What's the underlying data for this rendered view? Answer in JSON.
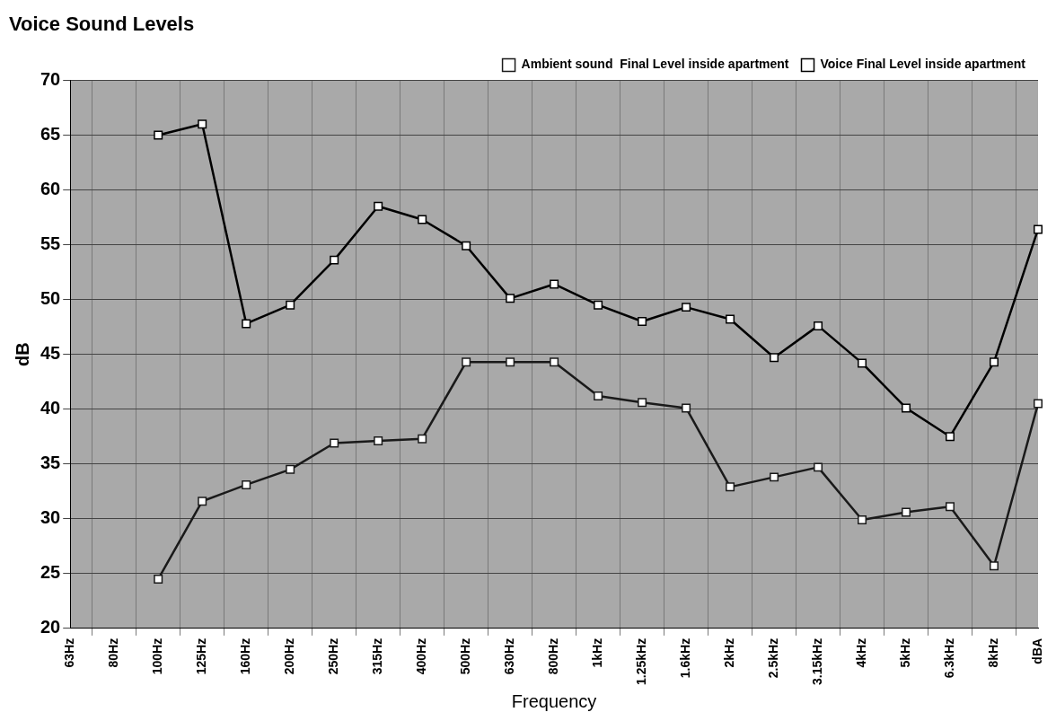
{
  "chart_data": {
    "type": "line",
    "title": "Voice Sound Levels",
    "xlabel": "Frequency",
    "ylabel": "dB",
    "categories": [
      "63Hz",
      "80Hz",
      "100Hz",
      "125Hz",
      "160Hz",
      "200Hz",
      "250Hz",
      "315Hz",
      "400Hz",
      "500Hz",
      "630Hz",
      "800Hz",
      "1kHz",
      "1.25kHz",
      "1.6kHz",
      "2kHz",
      "2.5kHz",
      "3.15kHz",
      "4kHz",
      "5kHz",
      "6.3kHz",
      "8kHz",
      "dBA"
    ],
    "series": [
      {
        "name": "Ambient sound  Final Level inside apartment",
        "color": "#1a1a1a",
        "values": [
          null,
          null,
          24.5,
          31.6,
          33.1,
          34.5,
          36.9,
          37.1,
          37.3,
          44.3,
          44.3,
          44.3,
          41.2,
          40.6,
          40.1,
          32.9,
          33.8,
          34.7,
          29.9,
          30.6,
          31.1,
          25.7,
          40.5
        ]
      },
      {
        "name": "Voice Final Level inside apartment",
        "color": "#000000",
        "values": [
          null,
          null,
          65.0,
          66.0,
          47.8,
          49.5,
          53.6,
          58.5,
          57.3,
          54.9,
          50.1,
          51.4,
          49.5,
          48.0,
          49.3,
          48.2,
          44.7,
          47.6,
          44.2,
          40.1,
          37.5,
          44.3,
          56.4
        ]
      }
    ],
    "ylim": [
      20,
      70
    ],
    "yticks": [
      20,
      25,
      30,
      35,
      40,
      45,
      50,
      55,
      60,
      65,
      70
    ],
    "grid": true,
    "legend": "top right",
    "marker": "square",
    "line_style": "solid"
  }
}
